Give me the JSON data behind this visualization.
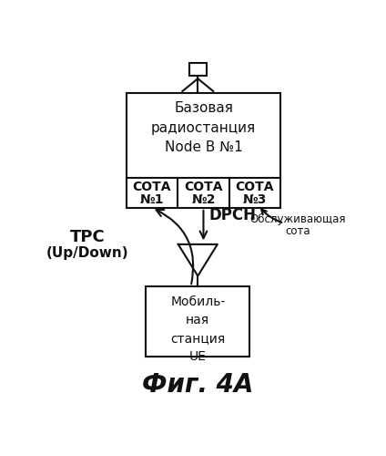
{
  "bg_color": "#ffffff",
  "title": "Фиг. 4А",
  "title_fontsize": 20,
  "title_fontweight": "bold",
  "base_station_text_line1": "Базовая",
  "base_station_text_line2": "радиостанция",
  "base_station_text_line3": "Node B №1",
  "cell1_text_line1": "СОТА",
  "cell1_text_line2": "№1",
  "cell2_text_line1": "СОТА",
  "cell2_text_line2": "№2",
  "cell3_text_line1": "СОТА",
  "cell3_text_line2": "№3",
  "mobile_text_line1": "Мобиль-",
  "mobile_text_line2": "ная",
  "mobile_text_line3": "станция",
  "mobile_text_line4": "UE",
  "tpc_label_line1": "TPC",
  "tpc_label_line2": "(Up/Down)",
  "dpch_label": "DPCH",
  "obs_label_line1": "Обслуживающая",
  "obs_label_line2": "сота"
}
